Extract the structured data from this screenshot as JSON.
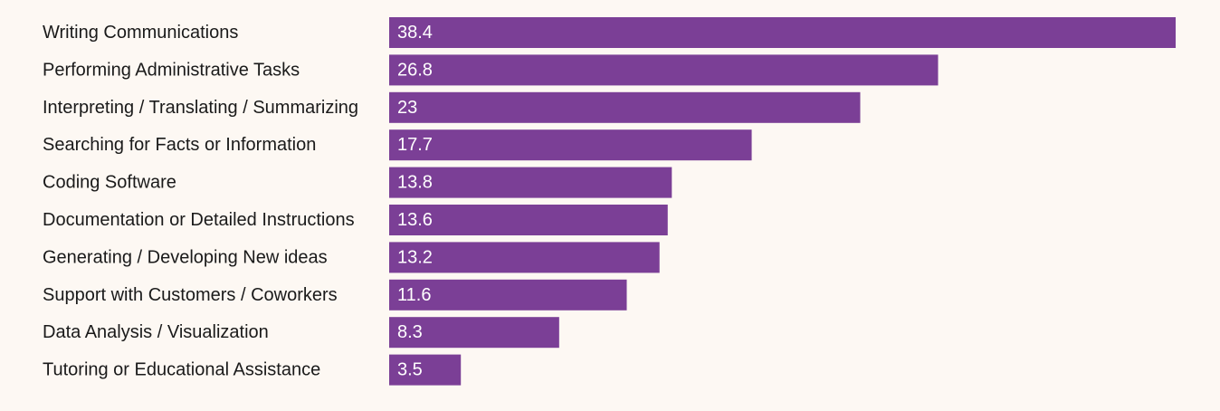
{
  "chart_data": {
    "type": "bar",
    "orientation": "horizontal",
    "categories": [
      "Writing Communications",
      "Performing Administrative Tasks",
      "Interpreting / Translating / Summarizing",
      "Searching for Facts or Information",
      "Coding Software",
      "Documentation or Detailed Instructions",
      "Generating / Developing New ideas",
      "Support with Customers / Coworkers",
      "Data Analysis / Visualization",
      "Tutoring or Educational Assistance"
    ],
    "values": [
      38.4,
      26.8,
      23,
      17.7,
      13.8,
      13.6,
      13.2,
      11.6,
      8.3,
      3.5
    ],
    "value_labels": [
      "38.4",
      "26.8",
      "23",
      "17.7",
      "13.8",
      "13.6",
      "13.2",
      "11.6",
      "8.3",
      "3.5"
    ],
    "title": "",
    "xlabel": "",
    "ylabel": "",
    "xlim": [
      0,
      38.4
    ],
    "grid": false,
    "legend": "none",
    "colors": {
      "bar": "#7b3f96",
      "background": "#fdf8f3",
      "label_text": "#1a1a1a",
      "value_text": "#ffffff"
    }
  }
}
